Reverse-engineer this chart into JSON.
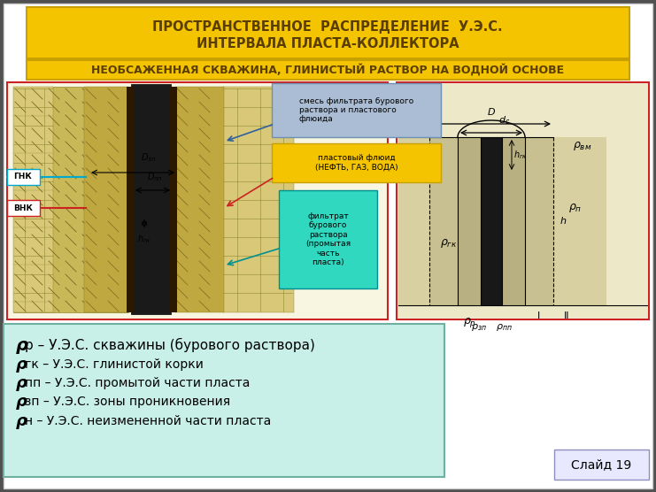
{
  "title_line1": "ПРОСТРАНСТВЕННОЕ  РАСПРЕДЕЛЕНИЕ  У.Э.С.",
  "title_line2": "ИНТЕРВАЛА ПЛАСТА-КОЛЛЕКТОРА",
  "subtitle": "НЕОБСАЖЕННАЯ СКВАЖИНА, ГЛИНИСТЫЙ РАСТВОР НА ВОДНОЙ ОСНОВЕ",
  "title_bg": "#F5C400",
  "subtitle_bg": "#F5C400",
  "title_text_color": "#5A3E00",
  "legend_bg": "#C8F0E8",
  "legend_border": "#70B0A0",
  "legend_lines": [
    [
      "ρ",
      "р – У.Э.С. скважины (бурового раствора)",
      14,
      11
    ],
    [
      "ρ",
      "гк – У.Э.С. глинистой корки",
      13,
      10
    ],
    [
      "ρ",
      "пп – У.Э.С. промытой части пласта",
      13,
      10
    ],
    [
      "ρ",
      "зп – У.Э.С. зоны проникновения",
      13,
      10
    ],
    [
      "ρ",
      "н – У.Э.С. неизмененной части пласта",
      13,
      10
    ]
  ],
  "slide_label": "Слайд 19",
  "slide_label_bg": "#E8E8FF",
  "slide_label_border": "#9090C0",
  "main_bg": "#FFFFFF",
  "outer_bg": "#505050",
  "panel_border": "#CC2222",
  "annot_smesh_bg": "#AABDD4",
  "annot_smesh_text": "смесь фильтрата бурового\nраствора и пластового\nфлюида",
  "annot_plastovy_bg": "#F5C400",
  "annot_plastovy_text": "пластовый флюид\n(НЕФТЬ, ГАЗ, ВОДА)",
  "annot_filtrat_bg": "#30D8C0",
  "annot_filtrat_text": "фильтрат\nбурового\nраствора\n(промытая\nчасть\nпласта)",
  "gnk_color": "#00AACC",
  "vnk_color": "#CC2222",
  "fig_width": 7.41,
  "fig_height": 5.56,
  "dpi": 100
}
